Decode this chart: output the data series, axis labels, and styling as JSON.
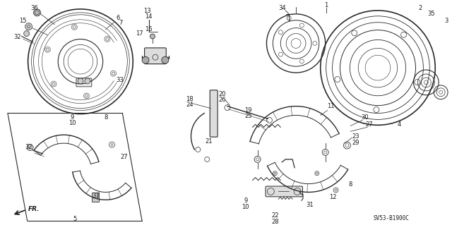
{
  "background_color": "#ffffff",
  "diagram_code": "SV53-B1900C",
  "text_color": "#1a1a1a",
  "line_color": "#2a2a2a",
  "font_size_labels": 6,
  "font_size_code": 5.5
}
